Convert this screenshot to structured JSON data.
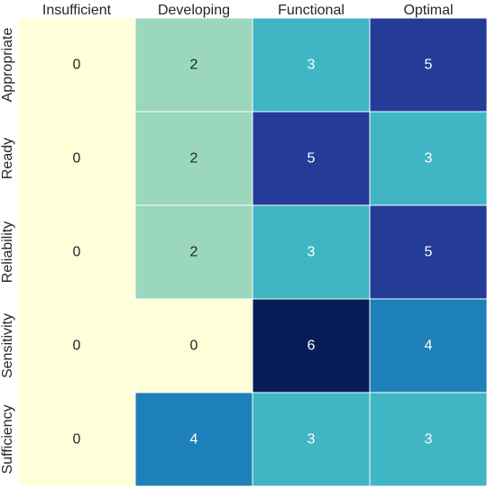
{
  "chart_data": {
    "type": "heatmap",
    "title": "",
    "xlabel": "",
    "ylabel": "",
    "columns": [
      "Insufficient",
      "Developing",
      "Functional",
      "Optimal"
    ],
    "rows": [
      "Appropriate",
      "Ready",
      "Reliability",
      "Sensitivity",
      "Sufficiency"
    ],
    "values": [
      [
        0,
        2,
        3,
        5
      ],
      [
        0,
        2,
        5,
        3
      ],
      [
        0,
        2,
        3,
        5
      ],
      [
        0,
        0,
        6,
        4
      ],
      [
        0,
        4,
        3,
        3
      ]
    ],
    "value_range": [
      0,
      6
    ],
    "colormap": "YlGnBu",
    "colorbar": false,
    "annotated": true,
    "color_scale": {
      "0": "#ffffd9",
      "2": "#9ad7bc",
      "3": "#40b6c4",
      "4": "#1e80b8",
      "5": "#243c98",
      "6": "#081d58"
    },
    "annotation_colors": {
      "dark_text": "#262626",
      "light_text": "#ffffff"
    },
    "cell_border_color": "#ffffff"
  }
}
